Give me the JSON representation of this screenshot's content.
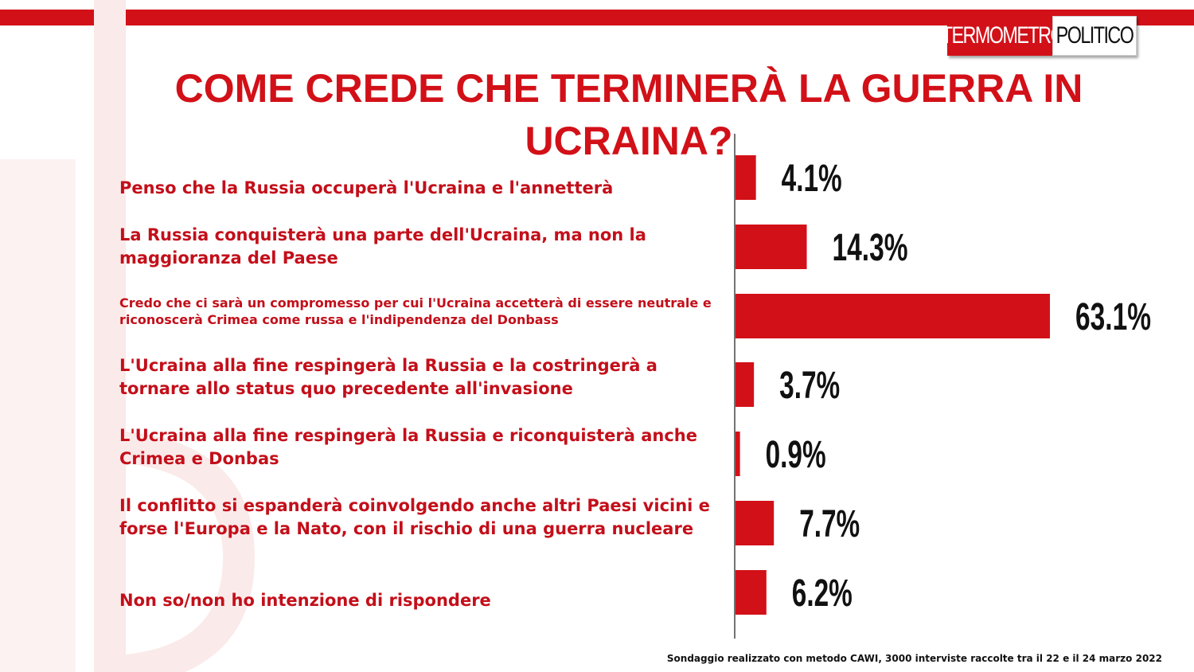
{
  "brand": {
    "logo_part1": "TERMOMETRO",
    "logo_part2": "POLITICO",
    "accent_color": "#d21018"
  },
  "footnote": "Sondaggio realizzato con metodo CAWI, 3000 interviste raccolte tra il 22 e il 24 marzo 2022",
  "chart_data": {
    "type": "bar",
    "orientation": "horizontal",
    "title": "COME CREDE CHE TERMINERÀ LA GUERRA IN UCRAINA?",
    "categories": [
      "Penso che la Russia occuperà l'Ucraina e l'annetterà",
      "La Russia conquisterà una parte dell'Ucraina, ma non la maggioranza del Paese",
      "Credo che ci sarà  un compromesso per cui l'Ucraina accetterà  di essere neutrale e riconoscerà Crimea come russa e l'indipendenza del Donbass",
      "L'Ucraina alla fine respingerà la Russia e la costringerà  a tornare allo status quo precedente all'invasione",
      "L'Ucraina alla fine respingerà la Russia e riconquisterà anche Crimea e Donbas",
      "Il conflitto si espanderà  coinvolgendo anche altri Paesi vicini e forse l'Europa e la Nato, con il rischio di una guerra nucleare",
      "Non so/non ho intenzione di rispondere"
    ],
    "values": [
      4.1,
      14.3,
      63.1,
      3.7,
      0.9,
      7.7,
      6.2
    ],
    "data_labels": [
      "4.1%",
      "14.3%",
      "63.1%",
      "3.7%",
      "0.9%",
      "7.7%",
      "6.2%"
    ],
    "xlim": [
      0,
      63.1
    ],
    "bar_color": "#d21018",
    "grid": false,
    "legend": "none"
  }
}
